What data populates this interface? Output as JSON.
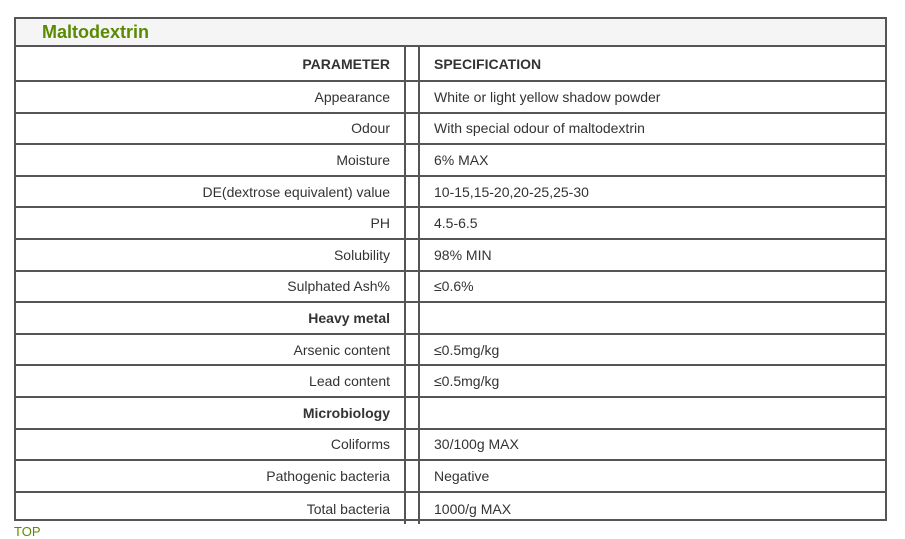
{
  "title": "Maltodextrin",
  "headers": {
    "parameter": "PARAMETER",
    "specification": "SPECIFICATION"
  },
  "rows": [
    {
      "parameter": "Appearance",
      "specification": "White or light yellow shadow powder"
    },
    {
      "parameter": "Odour",
      "specification": "With special odour of maltodextrin"
    },
    {
      "parameter": "Moisture",
      "specification": "6% MAX"
    },
    {
      "parameter": "DE(dextrose equivalent) value",
      "specification": "10-15,15-20,20-25,25-30"
    },
    {
      "parameter": "PH",
      "specification": "4.5-6.5"
    },
    {
      "parameter": "Solubility",
      "specification": "98% MIN"
    },
    {
      "parameter": "Sulphated Ash%",
      "specification": "≤0.6%"
    },
    {
      "parameter": "Heavy metal",
      "specification": "",
      "section": true
    },
    {
      "parameter": "Arsenic content",
      "specification": "≤0.5mg/kg"
    },
    {
      "parameter": "Lead content",
      "specification": "≤0.5mg/kg"
    },
    {
      "parameter": "Microbiology",
      "specification": "",
      "section": true
    },
    {
      "parameter": "Coliforms",
      "specification": "30/100g MAX"
    },
    {
      "parameter": "Pathogenic bacteria",
      "specification": "Negative"
    },
    {
      "parameter": "Total bacteria",
      "specification": "1000/g MAX"
    }
  ],
  "top_link": "TOP",
  "colors": {
    "accent": "#5a8a00",
    "border": "#555555",
    "title_bg": "#f5f5f5"
  }
}
